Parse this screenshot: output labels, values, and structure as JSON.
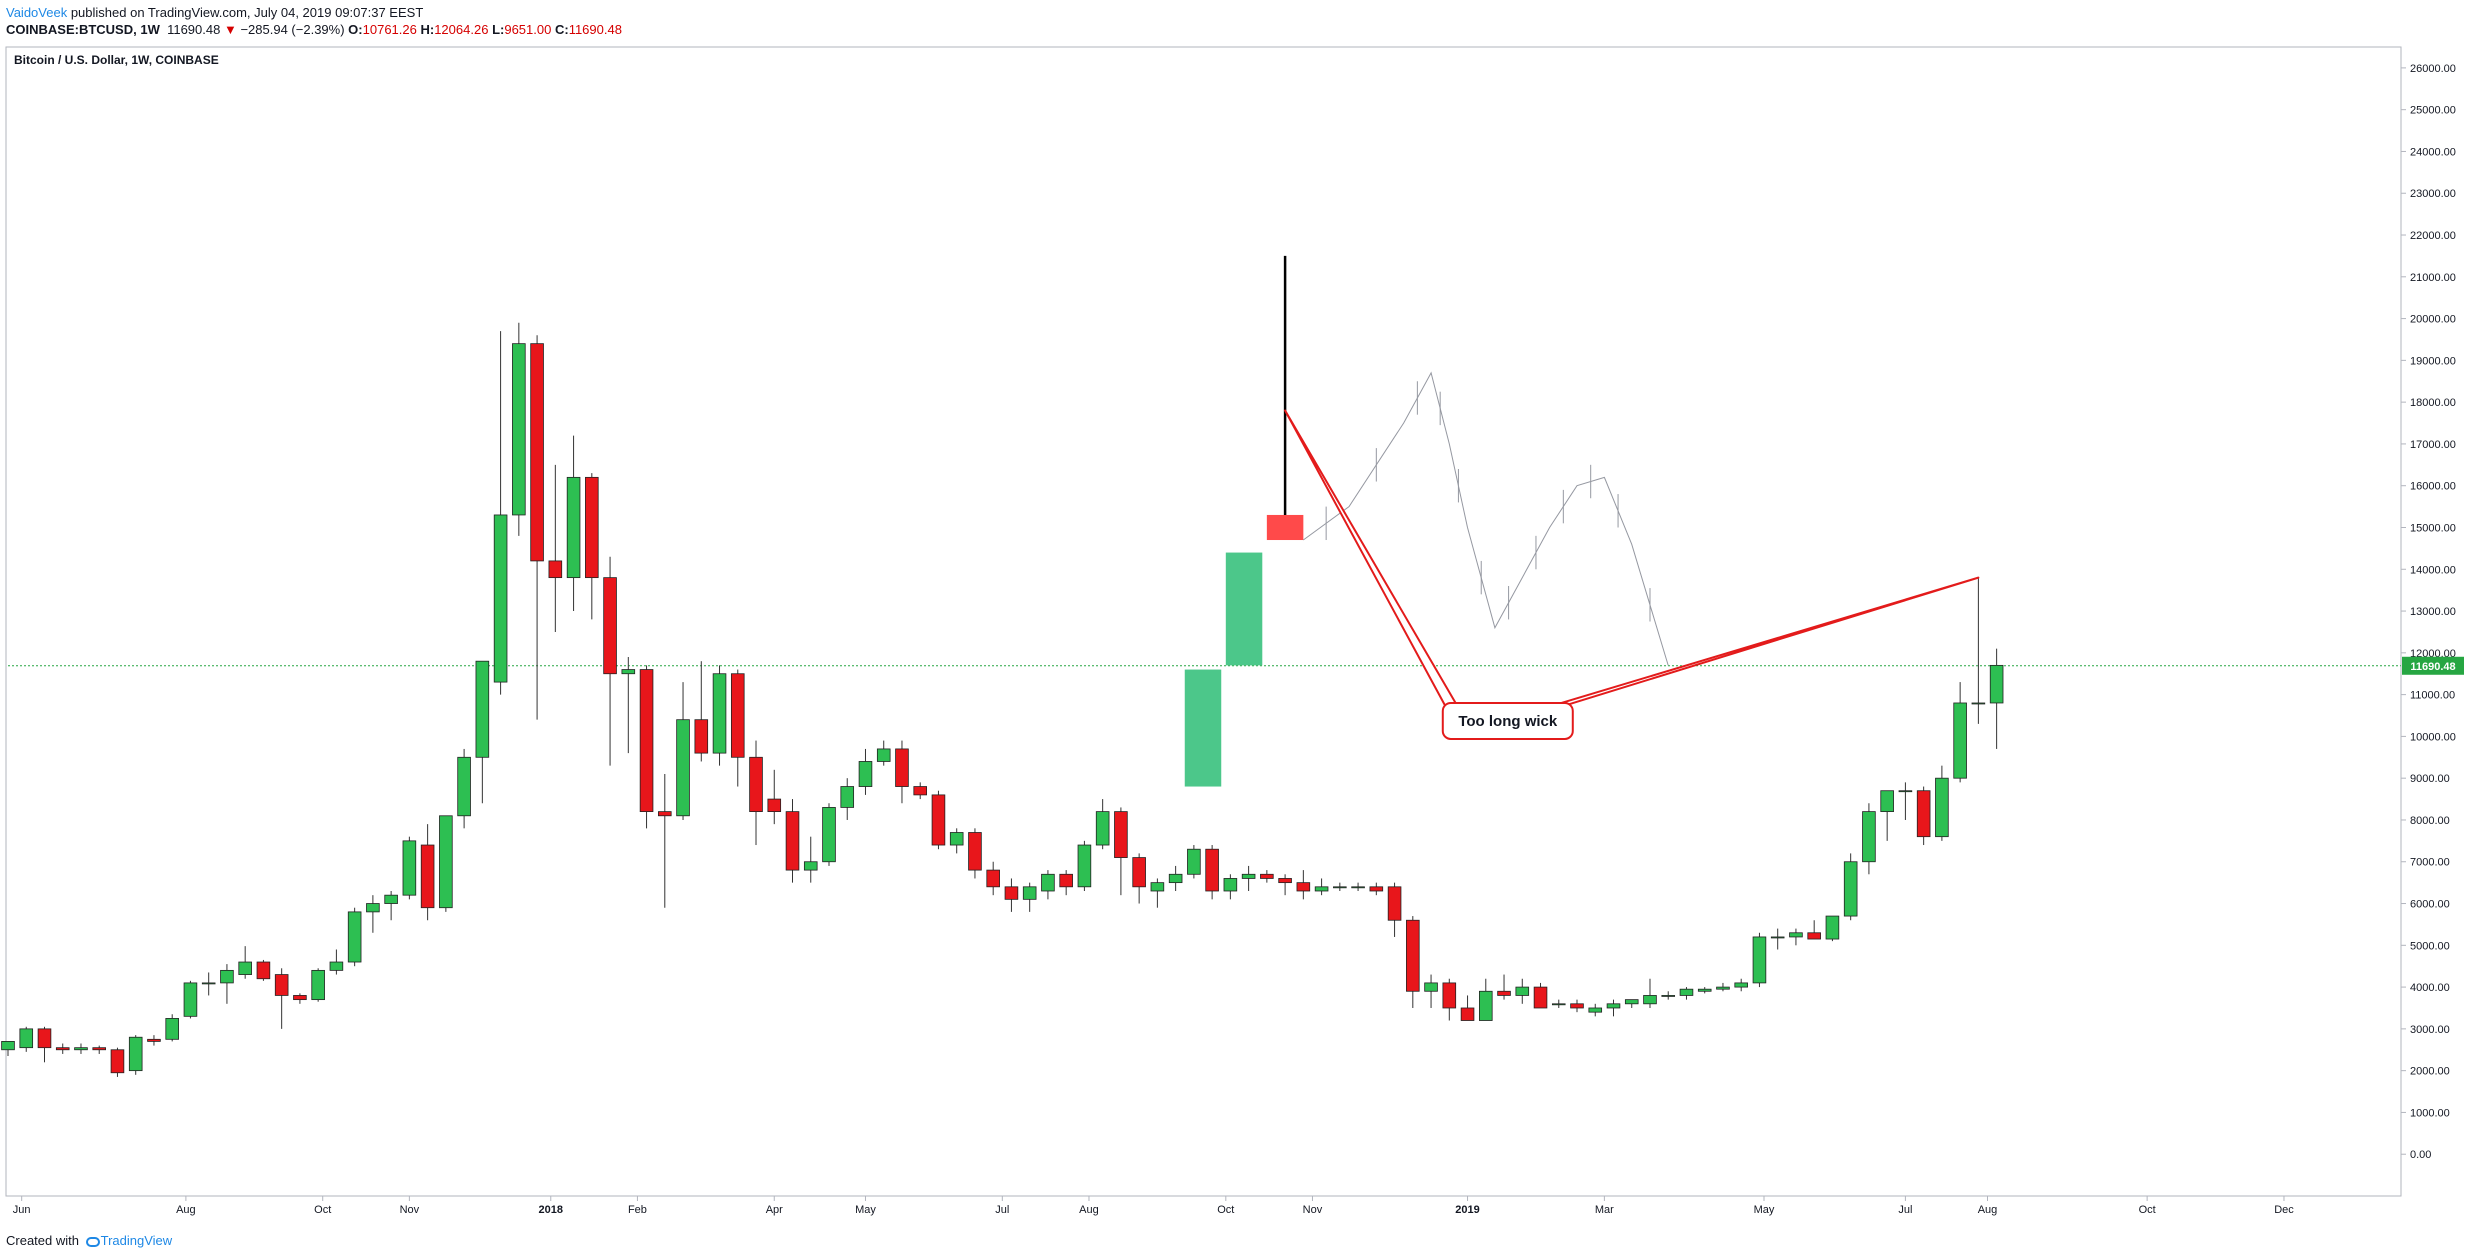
{
  "header": {
    "author": "VaidoVeek",
    "published_text": "published on TradingView.com, July 04, 2019 09:07:37 EEST",
    "symbol_line": "COINBASE:BTCUSD, 1W",
    "last_price": "11690.48",
    "change_arrow": "▼",
    "change_text": "−285.94 (−2.39%)",
    "o_label": "O:",
    "o_value": "10761.26",
    "h_label": "H:",
    "h_value": "12064.26",
    "l_label": "L:",
    "l_value": "9651.00",
    "c_label": "C:",
    "c_value": "11690.48"
  },
  "footer": {
    "created_with": "Created with",
    "brand": "TradingView"
  },
  "colors": {
    "up": "#2dbf52",
    "down": "#e8161b",
    "projection_up": "#4cc78a",
    "projection_down": "#ff4a4a",
    "annotation": "#e31b1b",
    "price_line": "#26a642"
  },
  "chart_data": {
    "type": "candlestick",
    "title": "Bitcoin / U.S. Dollar, 1W, COINBASE",
    "y_axis": {
      "ylim": [
        -1000,
        26500
      ],
      "ticks": [
        "0.00",
        "1000.00",
        "2000.00",
        "3000.00",
        "4000.00",
        "5000.00",
        "6000.00",
        "7000.00",
        "8000.00",
        "9000.00",
        "10000.00",
        "11000.00",
        "12000.00",
        "13000.00",
        "14000.00",
        "15000.00",
        "16000.00",
        "17000.00",
        "18000.00",
        "19000.00",
        "20000.00",
        "21000.00",
        "22000.00",
        "23000.00",
        "24000.00",
        "25000.00",
        "26000.00"
      ],
      "tick_values": [
        0,
        1000,
        2000,
        3000,
        4000,
        5000,
        6000,
        7000,
        8000,
        9000,
        10000,
        11000,
        11690.48,
        12000,
        13000,
        14000,
        15000,
        16000,
        17000,
        18000,
        19000,
        20000,
        21000,
        22000,
        23000,
        24000,
        25000,
        26000
      ],
      "last_price_label": "11690.48",
      "last_price": 11690.48
    },
    "x_axis": {
      "range": [
        0,
        262
      ],
      "labels": [
        {
          "text": "Jun",
          "x": 1.5
        },
        {
          "text": "Aug",
          "x": 19.5
        },
        {
          "text": "Oct",
          "x": 34.5
        },
        {
          "text": "Nov",
          "x": 44
        },
        {
          "text": "2018",
          "x": 59.5
        },
        {
          "text": "Feb",
          "x": 69
        },
        {
          "text": "Apr",
          "x": 84
        },
        {
          "text": "May",
          "x": 94
        },
        {
          "text": "Jul",
          "x": 109
        },
        {
          "text": "Aug",
          "x": 118.5
        },
        {
          "text": "Oct",
          "x": 133.5
        },
        {
          "text": "Nov",
          "x": 143
        },
        {
          "text": "2019",
          "x": 160
        },
        {
          "text": "Mar",
          "x": 175
        },
        {
          "text": "May",
          "x": 192.5
        },
        {
          "text": "Jul",
          "x": 208
        },
        {
          "text": "Aug",
          "x": 217
        },
        {
          "text": "Oct",
          "x": 234.5
        },
        {
          "text": "Dec",
          "x": 249.5
        }
      ]
    },
    "candles": [
      [
        0,
        2500,
        2700,
        2350,
        2700
      ],
      [
        2,
        2550,
        3050,
        2450,
        3000
      ],
      [
        4,
        3000,
        3050,
        2200,
        2550
      ],
      [
        6,
        2550,
        2650,
        2400,
        2500
      ],
      [
        8,
        2500,
        2650,
        2400,
        2550
      ],
      [
        10,
        2550,
        2600,
        2400,
        2500
      ],
      [
        12,
        2500,
        2550,
        1850,
        1950
      ],
      [
        14,
        2000,
        2850,
        1900,
        2800
      ],
      [
        16,
        2750,
        2850,
        2600,
        2700
      ],
      [
        18,
        2750,
        3350,
        2700,
        3250
      ],
      [
        20,
        3300,
        4150,
        3250,
        4100
      ],
      [
        22,
        4100,
        4350,
        3800,
        4100
      ],
      [
        24,
        4100,
        4550,
        3600,
        4400
      ],
      [
        26,
        4300,
        4980,
        4200,
        4600
      ],
      [
        28,
        4600,
        4650,
        4150,
        4200
      ],
      [
        30,
        4300,
        4450,
        3000,
        3800
      ],
      [
        32,
        3800,
        3850,
        3600,
        3700
      ],
      [
        34,
        3700,
        4450,
        3650,
        4400
      ],
      [
        36,
        4400,
        4900,
        4300,
        4600
      ],
      [
        38,
        4600,
        5900,
        4500,
        5800
      ],
      [
        40,
        5800,
        6200,
        5300,
        6000
      ],
      [
        42,
        6000,
        6300,
        5600,
        6200
      ],
      [
        44,
        6200,
        7600,
        6100,
        7500
      ],
      [
        46,
        7400,
        7900,
        5600,
        5900
      ],
      [
        48,
        5900,
        8100,
        5800,
        8100
      ],
      [
        50,
        8100,
        9700,
        7800,
        9500
      ],
      [
        52,
        9500,
        11800,
        8400,
        11800
      ],
      [
        54,
        11300,
        19700,
        11000,
        15300
      ],
      [
        56,
        15300,
        19900,
        14800,
        19400
      ],
      [
        58,
        19400,
        19600,
        10400,
        14200
      ],
      [
        60,
        14200,
        16500,
        12500,
        13800
      ],
      [
        62,
        13800,
        17200,
        13000,
        16200
      ],
      [
        64,
        16200,
        16300,
        12800,
        13800
      ],
      [
        66,
        13800,
        14300,
        9300,
        11500
      ],
      [
        68,
        11500,
        11900,
        9600,
        11600
      ],
      [
        70,
        11600,
        11700,
        7800,
        8200
      ],
      [
        72,
        8200,
        9100,
        5900,
        8100
      ],
      [
        74,
        8100,
        11300,
        8000,
        10400
      ],
      [
        76,
        10400,
        11800,
        9400,
        9600
      ],
      [
        78,
        9600,
        11700,
        9300,
        11500
      ],
      [
        80,
        11500,
        11600,
        8800,
        9500
      ],
      [
        82,
        9500,
        9900,
        7400,
        8200
      ],
      [
        84,
        8500,
        9200,
        7900,
        8200
      ],
      [
        86,
        8200,
        8500,
        6500,
        6800
      ],
      [
        88,
        6800,
        7600,
        6500,
        7000
      ],
      [
        90,
        7000,
        8400,
        6900,
        8300
      ],
      [
        92,
        8300,
        9000,
        8000,
        8800
      ],
      [
        94,
        8800,
        9700,
        8600,
        9400
      ],
      [
        96,
        9400,
        9900,
        9300,
        9700
      ],
      [
        98,
        9700,
        9900,
        8400,
        8800
      ],
      [
        100,
        8800,
        8900,
        8500,
        8600
      ],
      [
        102,
        8600,
        8700,
        7300,
        7400
      ],
      [
        104,
        7400,
        7800,
        7200,
        7700
      ],
      [
        106,
        7700,
        7800,
        6600,
        6800
      ],
      [
        108,
        6800,
        7000,
        6200,
        6400
      ],
      [
        110,
        6400,
        6600,
        5800,
        6100
      ],
      [
        112,
        6100,
        6500,
        5800,
        6400
      ],
      [
        114,
        6300,
        6800,
        6100,
        6700
      ],
      [
        116,
        6700,
        6800,
        6200,
        6400
      ],
      [
        118,
        6400,
        7500,
        6300,
        7400
      ],
      [
        120,
        7400,
        8500,
        7300,
        8200
      ],
      [
        122,
        8200,
        8300,
        6200,
        7100
      ],
      [
        124,
        7100,
        7200,
        6000,
        6400
      ],
      [
        126,
        6300,
        6600,
        5900,
        6500
      ],
      [
        128,
        6500,
        6900,
        6300,
        6700
      ],
      [
        130,
        6700,
        7400,
        6600,
        7300
      ],
      [
        132,
        7300,
        7400,
        6100,
        6300
      ],
      [
        134,
        6300,
        6700,
        6100,
        6600
      ],
      [
        136,
        6600,
        6900,
        6300,
        6700
      ],
      [
        138,
        6700,
        6800,
        6500,
        6600
      ],
      [
        140,
        6600,
        6700,
        6200,
        6500
      ],
      [
        142,
        6500,
        6800,
        6100,
        6300
      ],
      [
        144,
        6300,
        6600,
        6200,
        6400
      ],
      [
        146,
        6400,
        6500,
        6300,
        6400
      ],
      [
        148,
        6400,
        6500,
        6300,
        6400
      ],
      [
        150,
        6400,
        6500,
        6200,
        6300
      ],
      [
        152,
        6400,
        6500,
        5200,
        5600
      ],
      [
        154,
        5600,
        5700,
        3500,
        3900
      ],
      [
        156,
        3900,
        4300,
        3500,
        4100
      ],
      [
        158,
        4100,
        4200,
        3200,
        3500
      ],
      [
        160,
        3500,
        3800,
        3200,
        3200
      ],
      [
        162,
        3200,
        4200,
        3200,
        3900
      ],
      [
        164,
        3900,
        4300,
        3700,
        3800
      ],
      [
        166,
        3800,
        4200,
        3600,
        4000
      ],
      [
        168,
        4000,
        4100,
        3500,
        3500
      ],
      [
        170,
        3600,
        3700,
        3500,
        3600
      ],
      [
        172,
        3600,
        3700,
        3400,
        3500
      ],
      [
        174,
        3400,
        3600,
        3300,
        3500
      ],
      [
        176,
        3500,
        3700,
        3300,
        3600
      ],
      [
        178,
        3600,
        3700,
        3500,
        3700
      ],
      [
        180,
        3600,
        4200,
        3500,
        3800
      ],
      [
        182,
        3800,
        3900,
        3700,
        3800
      ],
      [
        184,
        3800,
        4000,
        3700,
        3950
      ],
      [
        186,
        3900,
        4000,
        3850,
        3950
      ],
      [
        188,
        3950,
        4100,
        3900,
        4000
      ],
      [
        190,
        4000,
        4200,
        3900,
        4100
      ],
      [
        192,
        4100,
        5300,
        4000,
        5200
      ],
      [
        194,
        5200,
        5400,
        4900,
        5200
      ],
      [
        196,
        5200,
        5400,
        5000,
        5300
      ],
      [
        198,
        5300,
        5600,
        5200,
        5150
      ],
      [
        200,
        5150,
        5700,
        5100,
        5700
      ],
      [
        202,
        5700,
        7200,
        5600,
        7000
      ],
      [
        204,
        7000,
        8400,
        6700,
        8200
      ],
      [
        206,
        8200,
        8700,
        7500,
        8700
      ],
      [
        208,
        8700,
        8900,
        8000,
        8700
      ],
      [
        210,
        8700,
        8800,
        7400,
        7600
      ],
      [
        212,
        7600,
        9300,
        7500,
        9000
      ],
      [
        214,
        9000,
        11300,
        8900,
        10800
      ],
      [
        216,
        10800,
        13800,
        10300,
        10800
      ],
      [
        218,
        10800,
        12100,
        9700,
        11700
      ]
    ],
    "projection": {
      "boxes": [
        {
          "x": [
            129,
            133
          ],
          "y0": 8800,
          "y1": 11600,
          "color": "projection_up"
        },
        {
          "x": [
            133.5,
            137.5
          ],
          "y0": 11700,
          "y1": 14400,
          "color": "projection_up"
        },
        {
          "x": [
            138,
            142
          ],
          "y0": 14700,
          "y1": 15300,
          "color": "projection_down"
        }
      ],
      "wick": {
        "x": 140,
        "y0": 15300,
        "y1": 21500
      },
      "gray_path": [
        [
          142,
          14700
        ],
        [
          147,
          15500
        ],
        [
          153,
          17500
        ],
        [
          156,
          18700
        ],
        [
          158,
          17000
        ],
        [
          160,
          15000
        ],
        [
          163,
          12600
        ],
        [
          166,
          13800
        ],
        [
          169,
          15000
        ],
        [
          172,
          16000
        ],
        [
          175,
          16200
        ],
        [
          178,
          14600
        ],
        [
          182,
          11700
        ]
      ]
    },
    "annotations": [
      {
        "text": "Too long wick",
        "anchor": [
          162,
          10800
        ],
        "pointers": [
          [
            140,
            17800
          ],
          [
            216,
            13800
          ]
        ]
      }
    ]
  }
}
